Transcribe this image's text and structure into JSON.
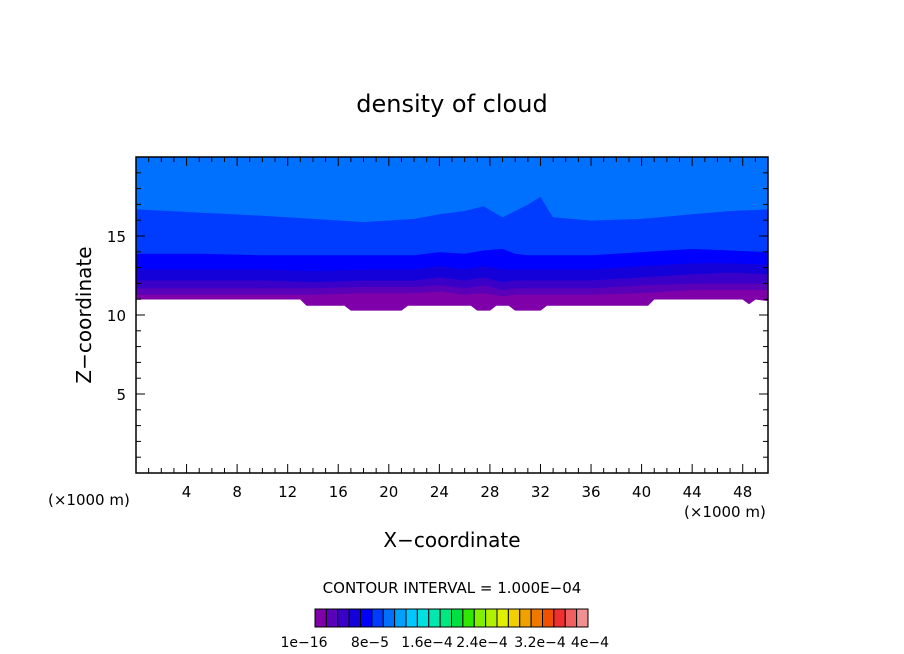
{
  "chart_data": {
    "type": "contour",
    "title": "density of cloud",
    "xlabel": "X−coordinate",
    "ylabel": "Z−coordinate",
    "x_unit_left": "(×1000 m)",
    "x_unit_right": "(×1000 m)",
    "xlim": [
      0,
      50
    ],
    "ylim": [
      0,
      20
    ],
    "x_ticks": [
      4,
      8,
      12,
      16,
      20,
      24,
      28,
      32,
      36,
      40,
      44,
      48
    ],
    "x_tick_labels": [
      "4",
      "8",
      "12",
      "16",
      "20",
      "24",
      "28",
      "32",
      "36",
      "40",
      "44",
      "48"
    ],
    "y_ticks": [
      5,
      10,
      15
    ],
    "y_tick_labels": [
      "5",
      "10",
      "15"
    ],
    "cloud_base_z": [
      [
        0,
        11.0
      ],
      [
        13,
        11.0
      ],
      [
        13.5,
        10.6
      ],
      [
        16.5,
        10.6
      ],
      [
        17,
        10.3
      ],
      [
        21,
        10.3
      ],
      [
        21.5,
        10.6
      ],
      [
        26.5,
        10.6
      ],
      [
        27,
        10.3
      ],
      [
        28,
        10.3
      ],
      [
        28.5,
        10.6
      ],
      [
        29.5,
        10.6
      ],
      [
        30,
        10.3
      ],
      [
        32,
        10.3
      ],
      [
        32.5,
        10.6
      ],
      [
        40.5,
        10.6
      ],
      [
        41,
        11.0
      ],
      [
        48,
        11.0
      ],
      [
        48.5,
        10.7
      ],
      [
        49,
        11.0
      ],
      [
        50,
        10.9
      ]
    ],
    "layer_tops_z": {
      "x": [
        0,
        5,
        10,
        14,
        18,
        22,
        24,
        26,
        27.5,
        29,
        30,
        31,
        32,
        33,
        36,
        40,
        44,
        47,
        50
      ],
      "levels": [
        {
          "color": "#7f00a8",
          "z": [
            11.3,
            11.3,
            11.3,
            11.3,
            11.4,
            11.4,
            11.5,
            11.3,
            11.4,
            11.2,
            11.3,
            11.3,
            11.3,
            11.3,
            11.3,
            11.4,
            11.6,
            11.6,
            11.6
          ]
        },
        {
          "color": "#5a00b8",
          "z": [
            11.7,
            11.7,
            11.7,
            11.7,
            11.8,
            11.8,
            11.9,
            11.7,
            11.9,
            11.6,
            11.7,
            11.7,
            11.7,
            11.7,
            11.7,
            11.9,
            12.0,
            12.0,
            12.0
          ]
        },
        {
          "color": "#3a00c8",
          "z": [
            12.2,
            12.2,
            12.2,
            12.1,
            12.2,
            12.2,
            12.4,
            12.2,
            12.4,
            12.1,
            12.2,
            12.2,
            12.2,
            12.2,
            12.2,
            12.4,
            12.6,
            12.7,
            12.6
          ]
        },
        {
          "color": "#1400d8",
          "z": [
            12.9,
            12.9,
            12.9,
            12.8,
            12.9,
            12.9,
            13.1,
            12.9,
            13.1,
            12.9,
            12.9,
            12.9,
            12.9,
            12.9,
            12.9,
            13.1,
            13.3,
            13.3,
            13.2
          ]
        },
        {
          "color": "#0000ff",
          "z": [
            13.9,
            13.9,
            13.8,
            13.8,
            13.8,
            13.8,
            14.0,
            13.9,
            14.1,
            14.2,
            13.9,
            13.8,
            13.8,
            13.8,
            13.8,
            14.0,
            14.2,
            14.1,
            14.0
          ]
        },
        {
          "color": "#003cff",
          "z": [
            16.7,
            16.5,
            16.3,
            16.1,
            15.9,
            16.1,
            16.4,
            16.6,
            16.9,
            16.2,
            16.6,
            17.0,
            17.5,
            16.2,
            16.0,
            16.1,
            16.4,
            16.6,
            16.7
          ]
        },
        {
          "color": "#0070ff",
          "z": [
            20,
            20,
            20,
            20,
            20,
            20,
            20,
            20,
            20,
            20,
            20,
            20,
            20,
            20,
            20,
            20,
            20,
            20,
            20
          ]
        }
      ]
    },
    "contour_interval_label": "CONTOUR INTERVAL = 1.000E−04",
    "colorbar_colors": [
      "#7f00a8",
      "#5a00b8",
      "#3a00c8",
      "#1400d8",
      "#0000ff",
      "#003cff",
      "#0070ff",
      "#00a0ff",
      "#00c8ff",
      "#00e0e0",
      "#00e8b0",
      "#00e880",
      "#00e040",
      "#30e800",
      "#80f000",
      "#b0f000",
      "#e0f000",
      "#f0d000",
      "#f0a000",
      "#f07800",
      "#f05000",
      "#f03030",
      "#f06060",
      "#f09090"
    ],
    "colorbar_labels": [
      "1e−16",
      "8e−5",
      "1.6e−4",
      "2.4e−4",
      "3.2e−4",
      "4e−4"
    ]
  }
}
